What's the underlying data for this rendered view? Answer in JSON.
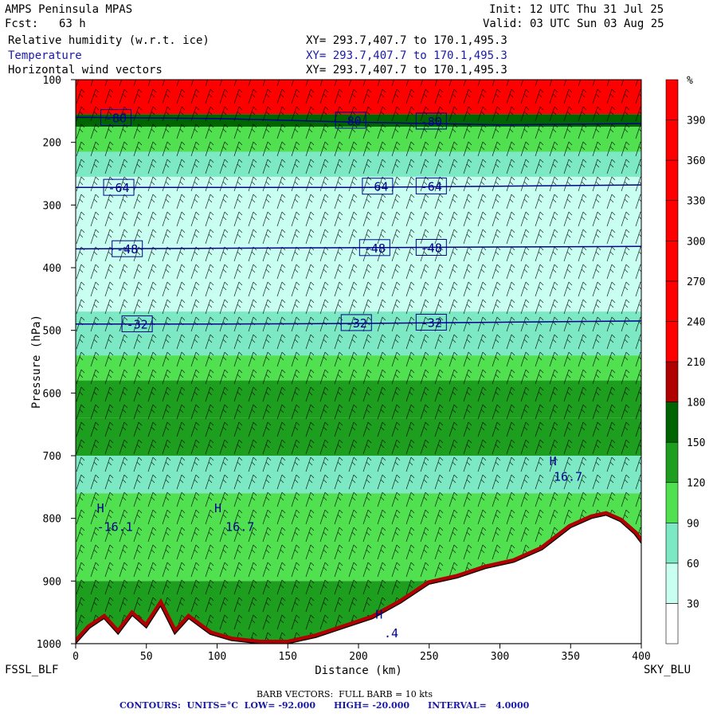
{
  "header": {
    "model": "AMPS Peninsula MPAS",
    "fcst_label": "Fcst:",
    "fcst_value": "63 h",
    "init": "Init: 12 UTC Thu 31 Jul 25",
    "valid": "Valid: 03 UTC Sun 03 Aug 25"
  },
  "fields": [
    {
      "name": "Relative humidity (w.r.t. ice)",
      "xy": "XY= 293.7,407.7 to 170.1,495.3"
    },
    {
      "name": "Temperature",
      "xy": "XY= 293.7,407.7 to 170.1,495.3"
    },
    {
      "name": "Horizontal wind vectors",
      "xy": "XY= 293.7,407.7 to 170.1,495.3"
    }
  ],
  "endpoints": {
    "left": "FSSL_BLF",
    "right": "SKY_BLU"
  },
  "footer": {
    "barb": "BARB VECTORS:  FULL BARB = 10 kts",
    "contours": "CONTOURS:  UNITS=°C  LOW= -92.000      HIGH= -20.000      INTERVAL=   4.0000"
  },
  "colors": {
    "rh_red": "#ff0000",
    "rh_dark_red": "#b00000",
    "rh_green_dark": "#006400",
    "rh_green": "#1e9e1e",
    "rh_green_light": "#50e050",
    "rh_aqua": "#7ce8c4",
    "rh_pale": "#c8fff0",
    "temp_contour": "#00008b"
  },
  "chart_data": {
    "type": "heatmap",
    "xlabel": "Distance (km)",
    "ylabel": "Pressure (hPa)",
    "xlim": [
      0,
      400
    ],
    "ylim": [
      1000,
      100
    ],
    "x_ticks": [
      0,
      50,
      100,
      150,
      200,
      250,
      300,
      350,
      400
    ],
    "y_ticks": [
      100,
      200,
      300,
      400,
      500,
      600,
      700,
      800,
      900,
      1000
    ],
    "colorbar": {
      "unit": "%",
      "ticks": [
        30,
        60,
        90,
        120,
        150,
        180,
        210,
        240,
        270,
        300,
        330,
        360,
        390
      ],
      "colors": [
        "#ffffff",
        "#c8fff0",
        "#7ce8c4",
        "#50e050",
        "#1e9e1e",
        "#006400",
        "#b00000",
        "#ff0000",
        "#ff0000",
        "#ff0000",
        "#ff0000",
        "#ff0000",
        "#ff0000",
        "#ff0000"
      ]
    },
    "rh_bands": [
      {
        "p_top": 100,
        "p_bot": 155,
        "class": "red"
      },
      {
        "p_top": 155,
        "p_bot": 175,
        "class": "green_dark"
      },
      {
        "p_top": 175,
        "p_bot": 215,
        "class": "green_light"
      },
      {
        "p_top": 215,
        "p_bot": 255,
        "class": "aqua"
      },
      {
        "p_top": 255,
        "p_bot": 470,
        "class": "pale"
      },
      {
        "p_top": 470,
        "p_bot": 540,
        "class": "aqua"
      },
      {
        "p_top": 540,
        "p_bot": 580,
        "class": "green_light"
      },
      {
        "p_top": 580,
        "p_bot": 640,
        "class": "green"
      },
      {
        "p_top": 640,
        "p_bot": 700,
        "class": "green"
      },
      {
        "p_top": 700,
        "p_bot": 760,
        "class": "aqua"
      },
      {
        "p_top": 760,
        "p_bot": 900,
        "class": "green_light"
      },
      {
        "p_top": 900,
        "p_bot": 1000,
        "class": "green"
      }
    ],
    "terrain": [
      [
        0,
        1000
      ],
      [
        10,
        975
      ],
      [
        20,
        960
      ],
      [
        30,
        985
      ],
      [
        40,
        955
      ],
      [
        50,
        975
      ],
      [
        60,
        940
      ],
      [
        70,
        985
      ],
      [
        80,
        960
      ],
      [
        95,
        985
      ],
      [
        110,
        995
      ],
      [
        130,
        1000
      ],
      [
        150,
        1000
      ],
      [
        170,
        990
      ],
      [
        190,
        975
      ],
      [
        210,
        960
      ],
      [
        230,
        935
      ],
      [
        250,
        905
      ],
      [
        270,
        895
      ],
      [
        290,
        880
      ],
      [
        310,
        870
      ],
      [
        330,
        850
      ],
      [
        350,
        815
      ],
      [
        365,
        800
      ],
      [
        375,
        795
      ],
      [
        385,
        805
      ],
      [
        395,
        825
      ],
      [
        400,
        840
      ]
    ],
    "temperature_contours": [
      {
        "label": "-80",
        "label_x": [
          20,
          186,
          243
        ],
        "points": [
          [
            0,
            160
          ],
          [
            100,
            162
          ],
          [
            200,
            168
          ],
          [
            300,
            172
          ],
          [
            400,
            170
          ]
        ]
      },
      {
        "label": "-64",
        "label_x": [
          22,
          205,
          243
        ],
        "points": [
          [
            0,
            272
          ],
          [
            100,
            272
          ],
          [
            200,
            272
          ],
          [
            300,
            270
          ],
          [
            400,
            268
          ]
        ]
      },
      {
        "label": "-48",
        "label_x": [
          28,
          203,
          243
        ],
        "points": [
          [
            0,
            370
          ],
          [
            100,
            369
          ],
          [
            200,
            368
          ],
          [
            300,
            367
          ],
          [
            400,
            366
          ]
        ]
      },
      {
        "label": "-32",
        "label_x": [
          35,
          190,
          243
        ],
        "points": [
          [
            0,
            490
          ],
          [
            100,
            490
          ],
          [
            200,
            489
          ],
          [
            300,
            487
          ],
          [
            400,
            485
          ]
        ]
      }
    ],
    "annotations": [
      {
        "text": "H",
        "x": 15,
        "p": 790
      },
      {
        "text": "-16.1",
        "x": 15,
        "p": 820
      },
      {
        "text": "H",
        "x": 98,
        "p": 790
      },
      {
        "text": "16.7",
        "x": 106,
        "p": 820
      },
      {
        "text": "H",
        "x": 335,
        "p": 715
      },
      {
        "text": "16.7",
        "x": 338,
        "p": 740
      },
      {
        "text": "H",
        "x": 212,
        "p": 960
      },
      {
        "text": ".4",
        "x": 218,
        "p": 990
      }
    ]
  }
}
